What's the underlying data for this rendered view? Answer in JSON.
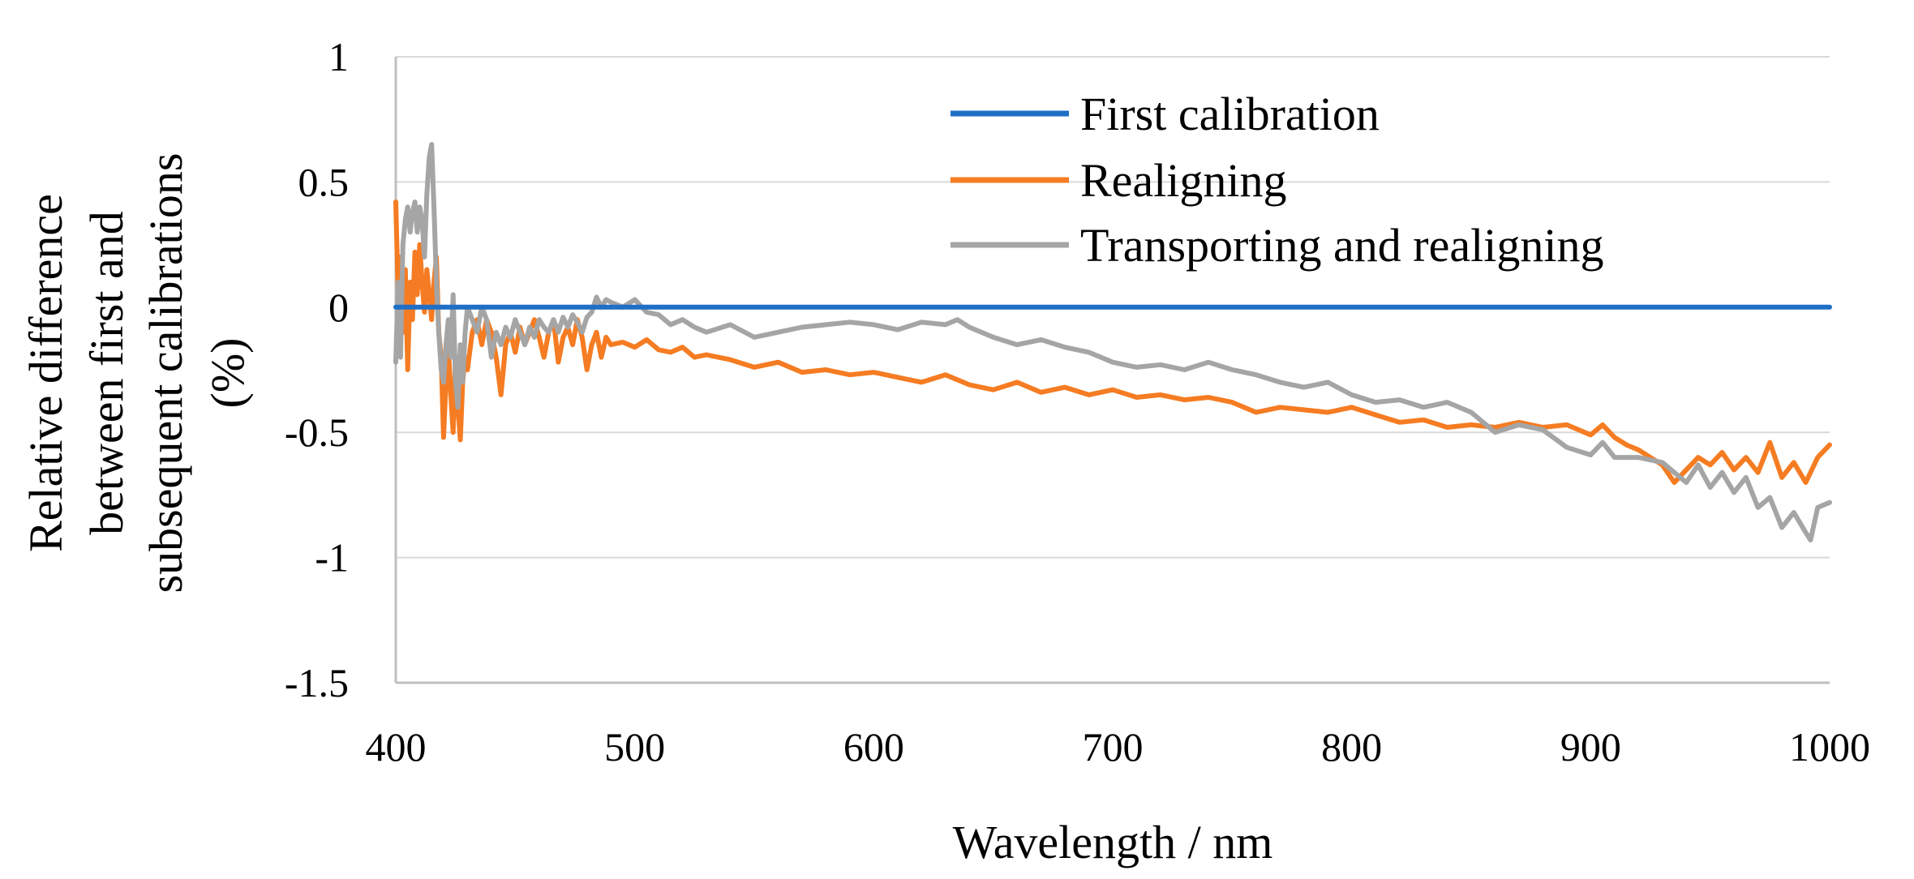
{
  "chart_data": {
    "type": "line",
    "title": "",
    "xlabel": "Wavelength  / nm",
    "ylabel_lines": [
      "Relative difference",
      "between first and",
      "subsequent calibrations",
      "(%)"
    ],
    "xlim": [
      400,
      1000
    ],
    "ylim": [
      -1.5,
      1
    ],
    "x_ticks": [
      400,
      500,
      600,
      700,
      800,
      900,
      1000
    ],
    "y_ticks": [
      1,
      0.5,
      0,
      -0.5,
      -1,
      -1.5
    ],
    "x_tick_labels": [
      "400",
      "500",
      "600",
      "700",
      "800",
      "900",
      "1000"
    ],
    "y_tick_labels": [
      "1",
      "0.5",
      "0",
      "-0.5",
      "-1",
      "-1.5"
    ],
    "grid": true,
    "legend_position": "top-right",
    "series": [
      {
        "name": "First calibration",
        "color": "#1f6fc6",
        "points": [
          [
            400,
            0
          ],
          [
            1000,
            0
          ]
        ]
      },
      {
        "name": "Realigning",
        "color": "#f57c22",
        "points": [
          [
            400,
            0.42
          ],
          [
            401,
            0.05
          ],
          [
            402,
            0.2
          ],
          [
            403,
            -0.1
          ],
          [
            404,
            0.15
          ],
          [
            405,
            -0.25
          ],
          [
            406,
            0.1
          ],
          [
            407,
            -0.05
          ],
          [
            408,
            0.22
          ],
          [
            409,
            0.05
          ],
          [
            410,
            0.25
          ],
          [
            411,
            0.1
          ],
          [
            412,
            -0.02
          ],
          [
            413,
            0.15
          ],
          [
            414,
            0.05
          ],
          [
            415,
            -0.05
          ],
          [
            416,
            0.1
          ],
          [
            417,
            0.2
          ],
          [
            418,
            -0.1
          ],
          [
            419,
            -0.2
          ],
          [
            420,
            -0.52
          ],
          [
            421,
            -0.3
          ],
          [
            422,
            -0.15
          ],
          [
            423,
            -0.35
          ],
          [
            424,
            -0.5
          ],
          [
            425,
            -0.2
          ],
          [
            426,
            -0.4
          ],
          [
            427,
            -0.53
          ],
          [
            428,
            -0.3
          ],
          [
            429,
            -0.2
          ],
          [
            430,
            -0.25
          ],
          [
            432,
            -0.1
          ],
          [
            434,
            -0.05
          ],
          [
            436,
            -0.15
          ],
          [
            438,
            -0.05
          ],
          [
            440,
            -0.1
          ],
          [
            442,
            -0.2
          ],
          [
            444,
            -0.35
          ],
          [
            446,
            -0.15
          ],
          [
            448,
            -0.1
          ],
          [
            450,
            -0.18
          ],
          [
            452,
            -0.08
          ],
          [
            454,
            -0.15
          ],
          [
            456,
            -0.1
          ],
          [
            458,
            -0.05
          ],
          [
            460,
            -0.12
          ],
          [
            462,
            -0.2
          ],
          [
            464,
            -0.1
          ],
          [
            466,
            -0.05
          ],
          [
            468,
            -0.22
          ],
          [
            470,
            -0.12
          ],
          [
            472,
            -0.08
          ],
          [
            474,
            -0.15
          ],
          [
            476,
            -0.05
          ],
          [
            478,
            -0.12
          ],
          [
            480,
            -0.25
          ],
          [
            482,
            -0.15
          ],
          [
            484,
            -0.1
          ],
          [
            486,
            -0.2
          ],
          [
            488,
            -0.12
          ],
          [
            490,
            -0.15
          ],
          [
            495,
            -0.14
          ],
          [
            500,
            -0.16
          ],
          [
            505,
            -0.13
          ],
          [
            510,
            -0.17
          ],
          [
            515,
            -0.18
          ],
          [
            520,
            -0.16
          ],
          [
            525,
            -0.2
          ],
          [
            530,
            -0.19
          ],
          [
            540,
            -0.21
          ],
          [
            550,
            -0.24
          ],
          [
            560,
            -0.22
          ],
          [
            570,
            -0.26
          ],
          [
            580,
            -0.25
          ],
          [
            590,
            -0.27
          ],
          [
            600,
            -0.26
          ],
          [
            610,
            -0.28
          ],
          [
            620,
            -0.3
          ],
          [
            630,
            -0.27
          ],
          [
            640,
            -0.31
          ],
          [
            650,
            -0.33
          ],
          [
            660,
            -0.3
          ],
          [
            670,
            -0.34
          ],
          [
            680,
            -0.32
          ],
          [
            690,
            -0.35
          ],
          [
            700,
            -0.33
          ],
          [
            710,
            -0.36
          ],
          [
            720,
            -0.35
          ],
          [
            730,
            -0.37
          ],
          [
            740,
            -0.36
          ],
          [
            750,
            -0.38
          ],
          [
            760,
            -0.42
          ],
          [
            770,
            -0.4
          ],
          [
            780,
            -0.41
          ],
          [
            790,
            -0.42
          ],
          [
            800,
            -0.4
          ],
          [
            810,
            -0.43
          ],
          [
            820,
            -0.46
          ],
          [
            830,
            -0.45
          ],
          [
            840,
            -0.48
          ],
          [
            850,
            -0.47
          ],
          [
            860,
            -0.48
          ],
          [
            870,
            -0.46
          ],
          [
            880,
            -0.48
          ],
          [
            890,
            -0.47
          ],
          [
            900,
            -0.51
          ],
          [
            905,
            -0.47
          ],
          [
            910,
            -0.52
          ],
          [
            915,
            -0.55
          ],
          [
            920,
            -0.57
          ],
          [
            925,
            -0.6
          ],
          [
            930,
            -0.63
          ],
          [
            935,
            -0.7
          ],
          [
            940,
            -0.65
          ],
          [
            945,
            -0.6
          ],
          [
            950,
            -0.63
          ],
          [
            955,
            -0.58
          ],
          [
            960,
            -0.65
          ],
          [
            965,
            -0.6
          ],
          [
            970,
            -0.66
          ],
          [
            975,
            -0.54
          ],
          [
            980,
            -0.68
          ],
          [
            985,
            -0.62
          ],
          [
            990,
            -0.7
          ],
          [
            995,
            -0.6
          ],
          [
            1000,
            -0.55
          ]
        ]
      },
      {
        "name": "Transporting and realigning",
        "color": "#a5a5a5",
        "points": [
          [
            400,
            -0.22
          ],
          [
            401,
            0.1
          ],
          [
            402,
            -0.2
          ],
          [
            403,
            0.25
          ],
          [
            404,
            0.35
          ],
          [
            405,
            0.4
          ],
          [
            406,
            0.3
          ],
          [
            407,
            0.38
          ],
          [
            408,
            0.42
          ],
          [
            409,
            0.3
          ],
          [
            410,
            0.4
          ],
          [
            411,
            0.35
          ],
          [
            412,
            0.2
          ],
          [
            413,
            0.45
          ],
          [
            414,
            0.6
          ],
          [
            415,
            0.65
          ],
          [
            416,
            0.4
          ],
          [
            417,
            0.1
          ],
          [
            418,
            -0.1
          ],
          [
            419,
            -0.25
          ],
          [
            420,
            -0.3
          ],
          [
            421,
            -0.15
          ],
          [
            422,
            -0.05
          ],
          [
            423,
            -0.2
          ],
          [
            424,
            0.05
          ],
          [
            425,
            -0.3
          ],
          [
            426,
            -0.4
          ],
          [
            427,
            -0.15
          ],
          [
            428,
            -0.3
          ],
          [
            429,
            -0.1
          ],
          [
            430,
            0.0
          ],
          [
            432,
            -0.05
          ],
          [
            434,
            -0.1
          ],
          [
            436,
            0.0
          ],
          [
            438,
            -0.05
          ],
          [
            440,
            -0.2
          ],
          [
            442,
            -0.1
          ],
          [
            444,
            -0.15
          ],
          [
            446,
            -0.08
          ],
          [
            448,
            -0.12
          ],
          [
            450,
            -0.05
          ],
          [
            452,
            -0.1
          ],
          [
            454,
            -0.15
          ],
          [
            456,
            -0.08
          ],
          [
            458,
            -0.12
          ],
          [
            460,
            -0.05
          ],
          [
            462,
            -0.08
          ],
          [
            464,
            -0.1
          ],
          [
            466,
            -0.05
          ],
          [
            468,
            -0.1
          ],
          [
            470,
            -0.04
          ],
          [
            472,
            -0.08
          ],
          [
            474,
            -0.03
          ],
          [
            476,
            -0.06
          ],
          [
            478,
            -0.1
          ],
          [
            480,
            -0.04
          ],
          [
            482,
            -0.02
          ],
          [
            484,
            0.04
          ],
          [
            486,
            0.0
          ],
          [
            488,
            0.03
          ],
          [
            490,
            0.02
          ],
          [
            495,
            0.0
          ],
          [
            500,
            0.03
          ],
          [
            505,
            -0.02
          ],
          [
            510,
            -0.03
          ],
          [
            515,
            -0.07
          ],
          [
            520,
            -0.05
          ],
          [
            525,
            -0.08
          ],
          [
            530,
            -0.1
          ],
          [
            540,
            -0.07
          ],
          [
            550,
            -0.12
          ],
          [
            560,
            -0.1
          ],
          [
            570,
            -0.08
          ],
          [
            580,
            -0.07
          ],
          [
            590,
            -0.06
          ],
          [
            600,
            -0.07
          ],
          [
            610,
            -0.09
          ],
          [
            620,
            -0.06
          ],
          [
            630,
            -0.07
          ],
          [
            635,
            -0.05
          ],
          [
            640,
            -0.08
          ],
          [
            650,
            -0.12
          ],
          [
            660,
            -0.15
          ],
          [
            670,
            -0.13
          ],
          [
            680,
            -0.16
          ],
          [
            690,
            -0.18
          ],
          [
            700,
            -0.22
          ],
          [
            710,
            -0.24
          ],
          [
            720,
            -0.23
          ],
          [
            730,
            -0.25
          ],
          [
            740,
            -0.22
          ],
          [
            750,
            -0.25
          ],
          [
            760,
            -0.27
          ],
          [
            770,
            -0.3
          ],
          [
            780,
            -0.32
          ],
          [
            790,
            -0.3
          ],
          [
            800,
            -0.35
          ],
          [
            810,
            -0.38
          ],
          [
            820,
            -0.37
          ],
          [
            830,
            -0.4
          ],
          [
            840,
            -0.38
          ],
          [
            850,
            -0.42
          ],
          [
            860,
            -0.5
          ],
          [
            870,
            -0.47
          ],
          [
            880,
            -0.49
          ],
          [
            890,
            -0.56
          ],
          [
            900,
            -0.59
          ],
          [
            905,
            -0.54
          ],
          [
            910,
            -0.6
          ],
          [
            920,
            -0.6
          ],
          [
            930,
            -0.62
          ],
          [
            940,
            -0.7
          ],
          [
            945,
            -0.63
          ],
          [
            950,
            -0.72
          ],
          [
            955,
            -0.66
          ],
          [
            960,
            -0.74
          ],
          [
            965,
            -0.68
          ],
          [
            970,
            -0.8
          ],
          [
            975,
            -0.76
          ],
          [
            980,
            -0.88
          ],
          [
            985,
            -0.82
          ],
          [
            990,
            -0.9
          ],
          [
            992,
            -0.93
          ],
          [
            995,
            -0.8
          ],
          [
            1000,
            -0.78
          ]
        ]
      }
    ]
  }
}
